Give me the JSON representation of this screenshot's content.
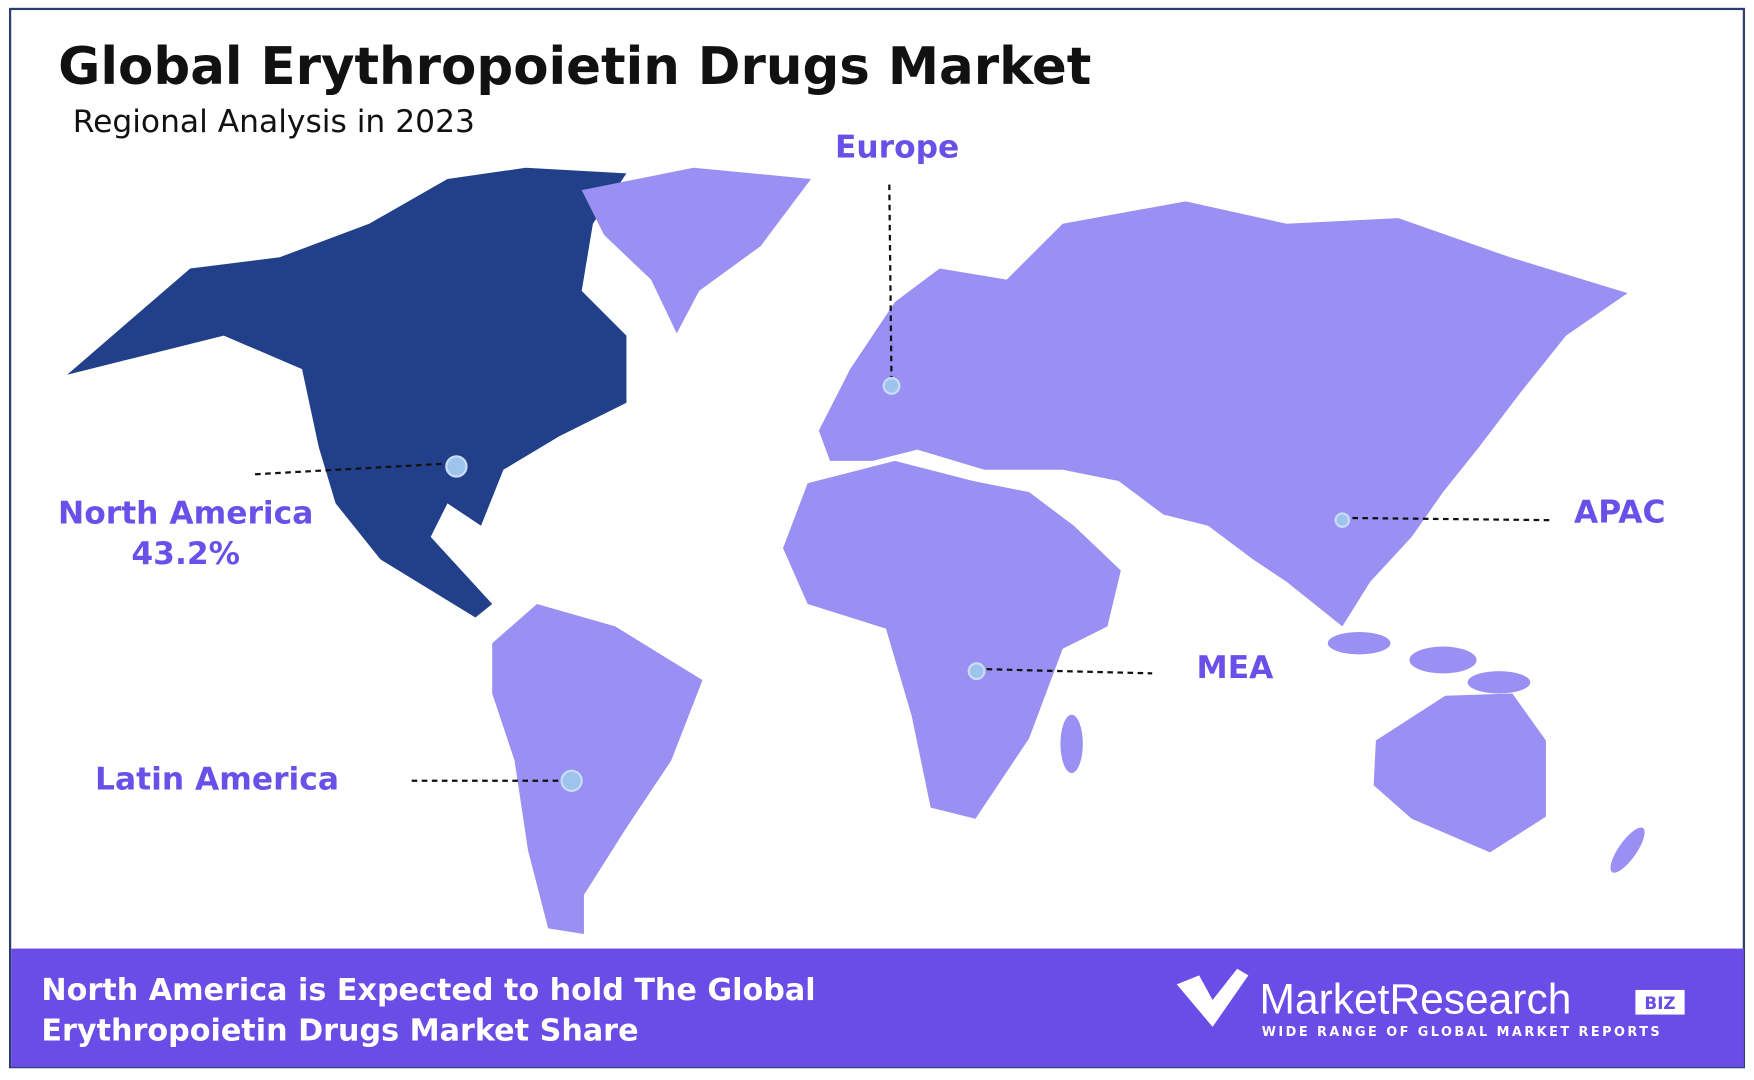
{
  "header": {
    "title": "Global Erythropoietin Drugs Market",
    "subtitle": "Regional Analysis in 2023"
  },
  "regions": [
    {
      "name": "North America",
      "share": "43.2%"
    },
    {
      "name": "Europe"
    },
    {
      "name": "APAC"
    },
    {
      "name": "MEA"
    },
    {
      "name": "Latin America"
    }
  ],
  "footer": {
    "lines": [
      "North America is Expected to hold The Global",
      "Erythropoietin Drugs Market Share"
    ]
  },
  "logo": {
    "name": "MarketResearch",
    "badge": "BIZ",
    "tagline": "WIDE RANGE OF GLOBAL MARKET REPORTS"
  }
}
